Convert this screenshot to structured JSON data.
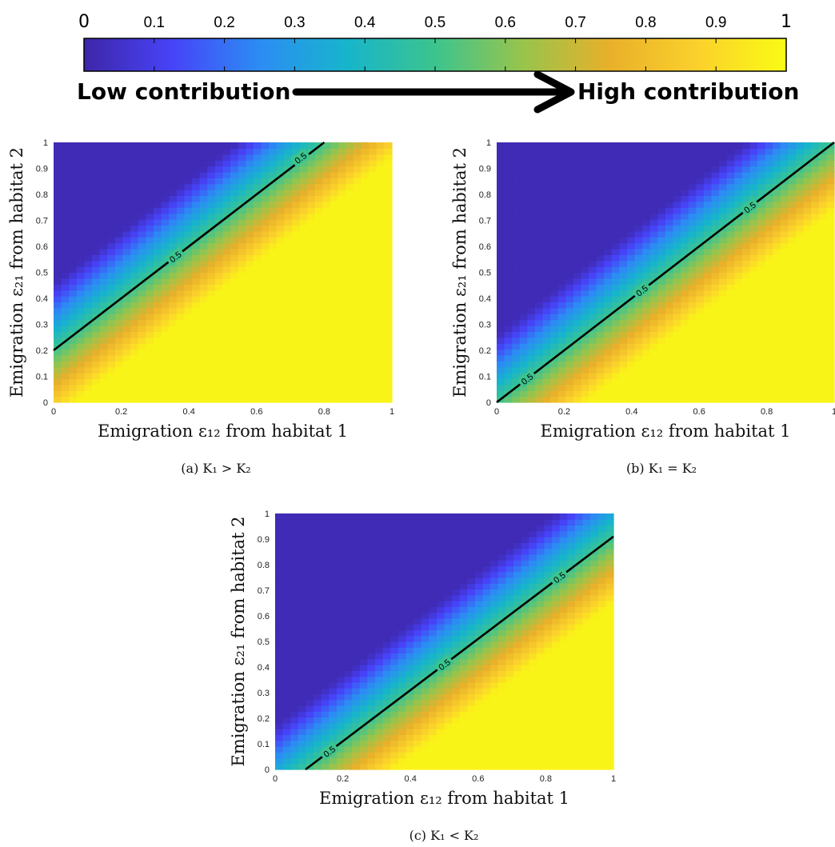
{
  "colorbar": {
    "tick_labels": [
      "0",
      "0.1",
      "0.2",
      "0.3",
      "0.4",
      "0.5",
      "0.6",
      "0.7",
      "0.8",
      "0.9",
      "1"
    ],
    "low_label": "Low contribution",
    "high_label": "High contribution",
    "colormap": [
      "#3e26a8",
      "#4743f8",
      "#2c8cf4",
      "#17b5cb",
      "#3cc48e",
      "#98c44c",
      "#e9b02a",
      "#fbd12c",
      "#f9fb14"
    ]
  },
  "chart_data": [
    {
      "type": "heatmap",
      "caption": "(a) K₁ > K₂",
      "xlabel": "Emigration ε₁₂ from habitat 1",
      "ylabel": "Emigration ε₂₁ from habitat 2",
      "xlim": [
        0,
        1
      ],
      "ylim": [
        0,
        1
      ],
      "x_ticks": [
        "0",
        "0.2",
        "0.4",
        "0.6",
        "0.8",
        "1"
      ],
      "y_ticks": [
        "0",
        "0.1",
        "0.2",
        "0.3",
        "0.4",
        "0.5",
        "0.6",
        "0.7",
        "0.8",
        "0.9",
        "1"
      ],
      "contour_level": 0.5,
      "contour_line": [
        [
          0,
          0.2
        ],
        [
          0.8,
          1.0
        ]
      ],
      "contour_labels": [
        {
          "text": "0.5",
          "x": 0.36,
          "y": 0.56
        },
        {
          "text": "0.5",
          "x": 0.73,
          "y": 0.94
        }
      ]
    },
    {
      "type": "heatmap",
      "caption": "(b) K₁ = K₂",
      "xlabel": "Emigration ε₁₂ from habitat 1",
      "ylabel": "Emigration ε₂₁ from habitat 2",
      "xlim": [
        0,
        1
      ],
      "ylim": [
        0,
        1
      ],
      "x_ticks": [
        "0",
        "0.2",
        "0.4",
        "0.6",
        "0.8",
        "1"
      ],
      "y_ticks": [
        "0",
        "0.1",
        "0.2",
        "0.3",
        "0.4",
        "0.5",
        "0.6",
        "0.7",
        "0.8",
        "0.9",
        "1"
      ],
      "contour_level": 0.5,
      "contour_line": [
        [
          0,
          0
        ],
        [
          1,
          1
        ]
      ],
      "contour_labels": [
        {
          "text": "0.5",
          "x": 0.09,
          "y": 0.09
        },
        {
          "text": "0.5",
          "x": 0.43,
          "y": 0.43
        },
        {
          "text": "0.5",
          "x": 0.75,
          "y": 0.75
        }
      ]
    },
    {
      "type": "heatmap",
      "caption": "(c) K₁ < K₂",
      "xlabel": "Emigration ε₁₂ from habitat 1",
      "ylabel": "Emigration ε₂₁ from habitat 2",
      "xlim": [
        0,
        1
      ],
      "ylim": [
        0,
        1
      ],
      "x_ticks": [
        "0",
        "0.2",
        "0.4",
        "0.6",
        "0.8",
        "1"
      ],
      "y_ticks": [
        "0",
        "0.1",
        "0.2",
        "0.3",
        "0.4",
        "0.5",
        "0.6",
        "0.7",
        "0.8",
        "0.9",
        "1"
      ],
      "contour_level": 0.5,
      "contour_line": [
        [
          0.09,
          0
        ],
        [
          1,
          0.91
        ]
      ],
      "contour_labels": [
        {
          "text": "0.5",
          "x": 0.16,
          "y": 0.07
        },
        {
          "text": "0.5",
          "x": 0.5,
          "y": 0.41
        },
        {
          "text": "0.5",
          "x": 0.84,
          "y": 0.75
        }
      ]
    }
  ]
}
